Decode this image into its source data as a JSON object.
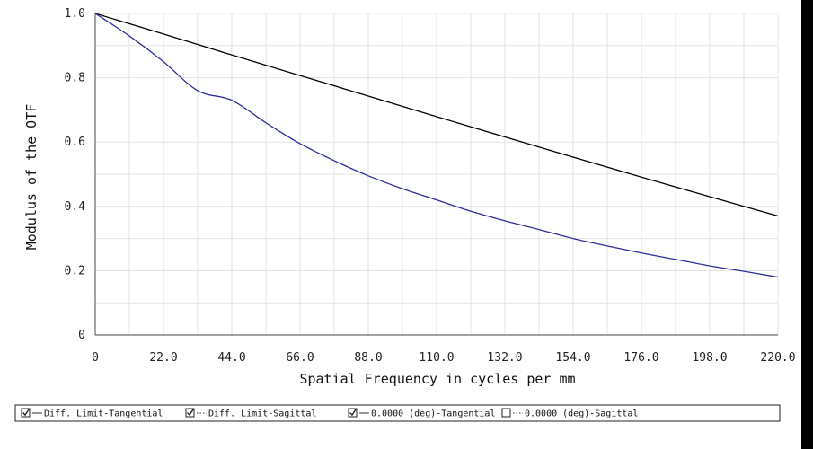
{
  "chart_data": {
    "type": "line",
    "xlabel": "Spatial Frequency in cycles per mm",
    "ylabel": "Modulus of the OTF",
    "xlim": [
      0,
      220
    ],
    "ylim": [
      0,
      1.0
    ],
    "x_tick_values": [
      0,
      22,
      44,
      66,
      88,
      110,
      132,
      154,
      176,
      198,
      220
    ],
    "x_tick_labels": [
      "0",
      "22.0",
      "44.0",
      "66.0",
      "88.0",
      "110.0",
      "132.0",
      "154.0",
      "176.0",
      "198.0",
      "220.0"
    ],
    "y_tick_values": [
      0,
      0.2,
      0.4,
      0.6,
      0.8,
      1.0
    ],
    "y_tick_labels": [
      "0",
      "0.2",
      "0.4",
      "0.6",
      "0.8",
      "1.0"
    ],
    "grid": true,
    "series": [
      {
        "name": "Diff. Limit-Tangential",
        "color": "#000000",
        "x": [
          0,
          22,
          44,
          66,
          88,
          110,
          132,
          154,
          176,
          198,
          220
        ],
        "y": [
          1.0,
          0.936,
          0.871,
          0.807,
          0.743,
          0.679,
          0.616,
          0.553,
          0.491,
          0.43,
          0.37
        ]
      },
      {
        "name": "0.0000 (deg)-Tangential",
        "color": "#2e2e9a",
        "x": [
          0,
          11,
          22,
          33,
          44,
          55,
          66,
          77,
          88,
          99,
          110,
          121,
          132,
          143,
          154,
          165,
          176,
          187,
          198,
          209,
          220
        ],
        "y": [
          1.0,
          0.93,
          0.85,
          0.76,
          0.73,
          0.66,
          0.595,
          0.542,
          0.495,
          0.455,
          0.42,
          0.385,
          0.355,
          0.328,
          0.3,
          0.277,
          0.255,
          0.235,
          0.215,
          0.198,
          0.18
        ]
      }
    ],
    "legend": {
      "placement": "bottom",
      "entries": [
        {
          "label": "Diff. Limit-Tangential",
          "checked": true,
          "line_style": "solid"
        },
        {
          "label": "Diff. Limit-Sagittal",
          "checked": true,
          "line_style": "dotted"
        },
        {
          "label": "0.0000 (deg)-Tangential",
          "checked": true,
          "line_style": "solid"
        },
        {
          "label": "0.0000 (deg)-Sagittal",
          "checked": false,
          "line_style": "dotted"
        }
      ]
    }
  }
}
